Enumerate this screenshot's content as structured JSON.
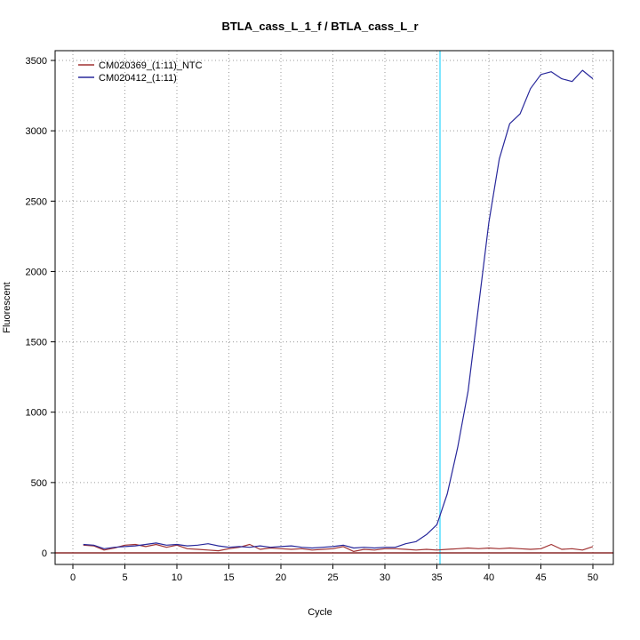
{
  "chart_data": {
    "type": "line",
    "title": "BTLA_cass_L_1_f / BTLA_cass_L_r",
    "xlabel": "Cycle",
    "ylabel": "Fluorescent",
    "grid": true,
    "legend_position": "top-left",
    "xticks": [
      0,
      5,
      10,
      15,
      20,
      25,
      30,
      35,
      40,
      45,
      50
    ],
    "yticks": [
      0,
      500,
      1000,
      1500,
      2000,
      2500,
      3000,
      3500
    ],
    "xlim": [
      -1.7,
      52
    ],
    "ylim": [
      -85,
      3570
    ],
    "threshold_cycle_line": {
      "x": 35.3,
      "color": "#7FE6FF"
    },
    "baseline_line": {
      "y": 0,
      "color": "#8B2B2B"
    },
    "grid_color": "#9a9a9a",
    "x": [
      1,
      2,
      3,
      4,
      5,
      6,
      7,
      8,
      9,
      10,
      11,
      12,
      13,
      14,
      15,
      16,
      17,
      18,
      19,
      20,
      21,
      22,
      23,
      24,
      25,
      26,
      27,
      28,
      29,
      30,
      31,
      32,
      33,
      34,
      35,
      36,
      37,
      38,
      39,
      40,
      41,
      42,
      43,
      44,
      45,
      46,
      47,
      48,
      49,
      50
    ],
    "series": [
      {
        "name": "CM020369_(1:11)_NTC",
        "color": "#A03232",
        "values": [
          55,
          50,
          20,
          35,
          55,
          60,
          45,
          60,
          40,
          55,
          30,
          25,
          20,
          15,
          30,
          40,
          60,
          25,
          35,
          30,
          25,
          30,
          20,
          25,
          30,
          45,
          10,
          25,
          20,
          30,
          30,
          25,
          20,
          25,
          20,
          25,
          30,
          35,
          30,
          35,
          30,
          35,
          30,
          25,
          30,
          60,
          25,
          30,
          20,
          45
        ]
      },
      {
        "name": "CM020412_(1:11)",
        "color": "#28289B",
        "values": [
          60,
          55,
          30,
          40,
          45,
          50,
          60,
          70,
          55,
          60,
          50,
          55,
          65,
          50,
          40,
          45,
          40,
          50,
          40,
          45,
          50,
          40,
          35,
          40,
          45,
          55,
          35,
          40,
          35,
          40,
          40,
          65,
          80,
          130,
          200,
          420,
          750,
          1150,
          1750,
          2350,
          2800,
          3050,
          3120,
          3300,
          3400,
          3420,
          3370,
          3350,
          3430,
          3370
        ]
      }
    ]
  }
}
